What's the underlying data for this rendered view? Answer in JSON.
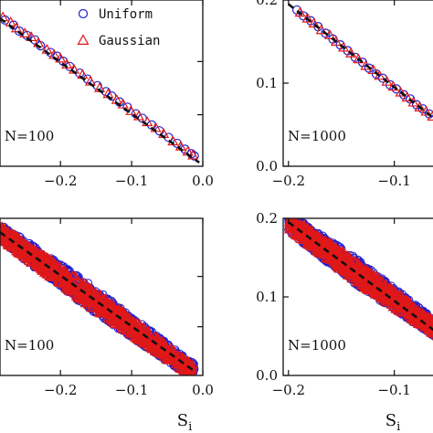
{
  "chart_data": [
    {
      "type": "scatter",
      "panel": "top-left",
      "annotation": "N=100",
      "xlim": [
        -0.285,
        0.0
      ],
      "ylim": [
        -0.005,
        0.22
      ],
      "x_ticks": [
        -0.2,
        -0.1,
        0.0
      ],
      "x_tick_labels": [
        "−0.2",
        "−0.1",
        "0.0"
      ],
      "y_ticks": [],
      "y_tick_labels": [],
      "xlabel": "",
      "legend": {
        "placement": "top-right",
        "entries": [
          "Uniform",
          "Gaussian"
        ]
      },
      "reference_line": {
        "style": "dashed",
        "x": [
          -0.285,
          -0.005
        ],
        "y": [
          0.195,
          0.0
        ]
      },
      "series": [
        {
          "name": "Uniform",
          "marker": "circle",
          "color": "#1f1fcf",
          "x": [
            -0.278,
            -0.266,
            -0.258,
            -0.247,
            -0.236,
            -0.228,
            -0.214,
            -0.205,
            -0.196,
            -0.187,
            -0.173,
            -0.162,
            -0.148,
            -0.136,
            -0.128,
            -0.117,
            -0.106,
            -0.094,
            -0.085,
            -0.072,
            -0.061,
            -0.048,
            -0.036,
            -0.025,
            -0.016,
            -0.012
          ],
          "y": [
            0.193,
            0.186,
            0.178,
            0.172,
            0.166,
            0.158,
            0.149,
            0.144,
            0.137,
            0.13,
            0.121,
            0.113,
            0.104,
            0.096,
            0.09,
            0.082,
            0.075,
            0.066,
            0.06,
            0.051,
            0.043,
            0.034,
            0.026,
            0.018,
            0.012,
            0.009
          ]
        },
        {
          "name": "Gaussian",
          "marker": "triangle",
          "color": "#e01818",
          "x": [
            -0.281,
            -0.27,
            -0.262,
            -0.25,
            -0.241,
            -0.231,
            -0.219,
            -0.209,
            -0.2,
            -0.191,
            -0.181,
            -0.169,
            -0.158,
            -0.145,
            -0.133,
            -0.121,
            -0.112,
            -0.101,
            -0.09,
            -0.078,
            -0.066,
            -0.055,
            -0.042,
            -0.031,
            -0.021,
            -0.014
          ],
          "y": [
            0.197,
            0.19,
            0.182,
            0.175,
            0.17,
            0.162,
            0.153,
            0.146,
            0.141,
            0.133,
            0.126,
            0.119,
            0.11,
            0.101,
            0.093,
            0.085,
            0.079,
            0.07,
            0.063,
            0.055,
            0.047,
            0.039,
            0.029,
            0.022,
            0.015,
            0.01
          ]
        }
      ]
    },
    {
      "type": "scatter",
      "panel": "top-right",
      "annotation": "N=1000",
      "xlim": [
        -0.205,
        -0.06
      ],
      "ylim": [
        0.0,
        0.2
      ],
      "x_ticks": [
        -0.2,
        -0.1
      ],
      "x_tick_labels": [
        "−0.2",
        "−0.1"
      ],
      "y_ticks": [
        0.0,
        0.1,
        0.2
      ],
      "y_tick_labels": [
        "0.0",
        "0.1",
        "0.2"
      ],
      "xlabel": "",
      "reference_line": {
        "style": "dashed",
        "x": [
          -0.2,
          -0.06
        ],
        "y": [
          0.195,
          0.055
        ]
      },
      "series": [
        {
          "name": "Uniform",
          "marker": "circle",
          "color": "#1f1fcf",
          "x": [
            -0.192,
            -0.186,
            -0.179,
            -0.172,
            -0.165,
            -0.158,
            -0.151,
            -0.144,
            -0.137,
            -0.13,
            -0.124,
            -0.117,
            -0.111,
            -0.104,
            -0.098,
            -0.091,
            -0.085,
            -0.079,
            -0.073,
            -0.067
          ],
          "y": [
            0.188,
            0.181,
            0.175,
            0.168,
            0.16,
            0.153,
            0.146,
            0.139,
            0.131,
            0.125,
            0.118,
            0.111,
            0.106,
            0.098,
            0.093,
            0.086,
            0.081,
            0.074,
            0.069,
            0.063
          ]
        },
        {
          "name": "Gaussian",
          "marker": "triangle",
          "color": "#e01818",
          "x": [
            -0.189,
            -0.182,
            -0.176,
            -0.169,
            -0.161,
            -0.155,
            -0.148,
            -0.141,
            -0.134,
            -0.127,
            -0.12,
            -0.114,
            -0.107,
            -0.101,
            -0.094,
            -0.088,
            -0.082,
            -0.076,
            -0.07,
            -0.064
          ],
          "y": [
            0.185,
            0.178,
            0.172,
            0.164,
            0.158,
            0.15,
            0.143,
            0.136,
            0.129,
            0.121,
            0.116,
            0.109,
            0.102,
            0.096,
            0.089,
            0.083,
            0.077,
            0.071,
            0.066,
            0.06
          ]
        }
      ]
    },
    {
      "type": "scatter",
      "panel": "bottom-left",
      "annotation": "N=100",
      "xlim": [
        -0.285,
        0.0
      ],
      "ylim": [
        -0.005,
        0.22
      ],
      "x_ticks": [
        -0.2,
        -0.1,
        0.0
      ],
      "x_tick_labels": [
        "−0.2",
        "−0.1",
        "0.0"
      ],
      "y_ticks": [],
      "y_tick_labels": [],
      "xlabel": "S",
      "xlabel_subscript": "i",
      "reference_line": {
        "style": "dashed",
        "x": [
          -0.285,
          -0.01
        ],
        "y": [
          0.2,
          0.0
        ]
      },
      "band": {
        "description": "dense cloud of Uniform and Gaussian points along the line",
        "x": [
          -0.285,
          -0.012
        ],
        "y_center": [
          0.2,
          0.0
        ],
        "half_width_y": 0.018
      }
    },
    {
      "type": "scatter",
      "panel": "bottom-right",
      "annotation": "N=1000",
      "xlim": [
        -0.205,
        -0.06
      ],
      "ylim": [
        0.0,
        0.2
      ],
      "x_ticks": [
        -0.2,
        -0.1
      ],
      "x_tick_labels": [
        "−0.2",
        "−0.1"
      ],
      "y_ticks": [
        0.0,
        0.1,
        0.2
      ],
      "y_tick_labels": [
        "0.0",
        "0.1",
        "0.2"
      ],
      "xlabel": "S",
      "xlabel_subscript": "i",
      "reference_line": {
        "style": "dashed",
        "x": [
          -0.2,
          -0.06
        ],
        "y": [
          0.195,
          0.055
        ]
      },
      "band": {
        "description": "dense cloud of Uniform and Gaussian points along the line",
        "x": [
          -0.2,
          -0.06
        ],
        "y_center": [
          0.195,
          0.058
        ],
        "half_width_y": 0.017
      }
    }
  ],
  "colors": {
    "uniform": "#1f1fcf",
    "gaussian": "#e01818",
    "axis": "#111111",
    "line": "#111111"
  }
}
